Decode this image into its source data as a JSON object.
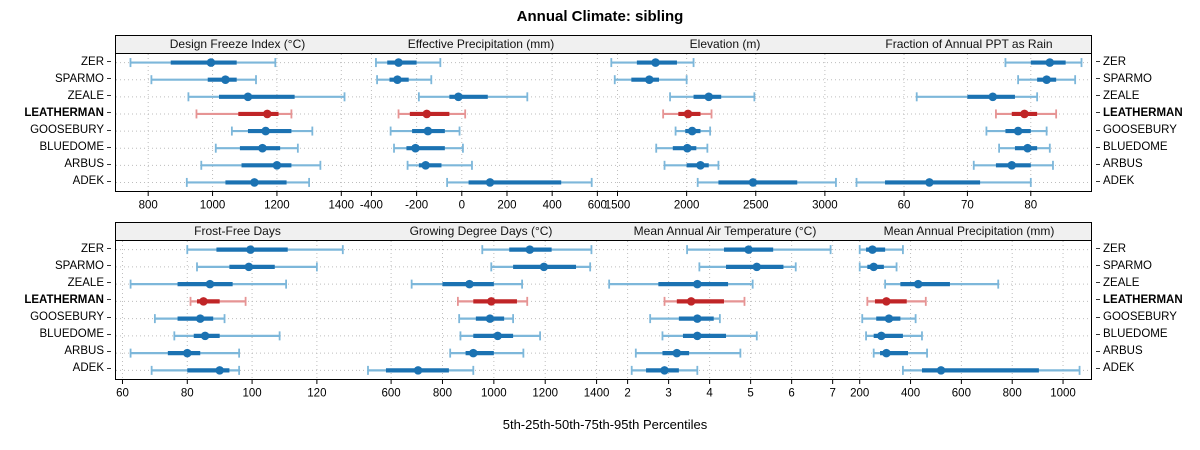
{
  "title": "Annual Climate: sibling",
  "caption": "5th-25th-50th-75th-95th Percentiles",
  "highlight_site": "LEATHERMAN",
  "colors": {
    "blue_dark": "#1b72b2",
    "blue_light": "#7db7da",
    "red_dark": "#c02527",
    "red_light": "#e69494",
    "strip_bg": "#f0f0f0",
    "grid": "#bdbdbd",
    "axis_text": "#000000"
  },
  "chart_data": {
    "type": "dotplot-percentile",
    "percentiles": [
      5,
      25,
      50,
      75,
      95
    ],
    "sites": [
      "ZER",
      "SPARMO",
      "ZEALE",
      "LEATHERMAN",
      "GOOSEBURY",
      "BLUEDOME",
      "ARBUS",
      "ADEK"
    ],
    "legend_position": "none",
    "grid": "dotted-at-ticks",
    "panels": [
      {
        "title": "Design Freeze Index (°C)",
        "xlim": [
          700,
          1455
        ],
        "ticks": [
          800,
          1000,
          1200,
          1400
        ],
        "values": {
          "ZER": [
            745,
            870,
            995,
            1075,
            1195
          ],
          "SPARMO": [
            810,
            985,
            1040,
            1075,
            1135
          ],
          "ZEALE": [
            925,
            1020,
            1110,
            1255,
            1410
          ],
          "LEATHERMAN": [
            950,
            1080,
            1170,
            1205,
            1245
          ],
          "GOOSEBURY": [
            1060,
            1110,
            1165,
            1245,
            1310
          ],
          "BLUEDOME": [
            1010,
            1085,
            1155,
            1210,
            1265
          ],
          "ARBUS": [
            965,
            1090,
            1200,
            1245,
            1335
          ],
          "ADEK": [
            920,
            1040,
            1130,
            1230,
            1300
          ]
        }
      },
      {
        "title": "Effective Precipitation (mm)",
        "xlim": [
          -455,
          625
        ],
        "ticks": [
          -400,
          -200,
          0,
          200,
          400,
          600
        ],
        "values": {
          "ZER": [
            -380,
            -330,
            -280,
            -200,
            -95
          ],
          "SPARMO": [
            -375,
            -320,
            -285,
            -235,
            -135
          ],
          "ZEALE": [
            -190,
            -55,
            -15,
            115,
            290
          ],
          "LEATHERMAN": [
            -280,
            -230,
            -155,
            -55,
            15
          ],
          "GOOSEBURY": [
            -315,
            -220,
            -150,
            -75,
            -10
          ],
          "BLUEDOME": [
            -300,
            -245,
            -205,
            -75,
            5
          ],
          "ARBUS": [
            -240,
            -190,
            -160,
            -90,
            45
          ],
          "ADEK": [
            -65,
            30,
            125,
            440,
            575
          ]
        }
      },
      {
        "title": "Elevation (m)",
        "xlim": [
          1395,
          3160
        ],
        "ticks": [
          1500,
          2000,
          2500,
          3000
        ],
        "values": {
          "ZER": [
            1455,
            1640,
            1775,
            1930,
            2050
          ],
          "SPARMO": [
            1480,
            1600,
            1730,
            1800,
            2000
          ],
          "ZEALE": [
            1880,
            2050,
            2160,
            2250,
            2490
          ],
          "LEATHERMAN": [
            1830,
            1940,
            2010,
            2100,
            2180
          ],
          "GOOSEBURY": [
            1920,
            1990,
            2040,
            2100,
            2170
          ],
          "BLUEDOME": [
            1780,
            1900,
            2005,
            2070,
            2150
          ],
          "ARBUS": [
            1840,
            2000,
            2100,
            2160,
            2230
          ],
          "ADEK": [
            2080,
            2230,
            2480,
            2800,
            3080
          ]
        }
      },
      {
        "title": "Fraction of Annual PPT as Rain",
        "xlim": [
          51,
          89.5
        ],
        "ticks": [
          60,
          70,
          80
        ],
        "values": {
          "ZER": [
            76,
            80,
            83,
            85.5,
            88
          ],
          "SPARMO": [
            78,
            81,
            82.5,
            84,
            87
          ],
          "ZEALE": [
            62,
            70,
            74,
            77.5,
            81
          ],
          "LEATHERMAN": [
            74.5,
            77,
            79,
            81,
            84
          ],
          "GOOSEBURY": [
            73,
            76,
            78,
            80,
            82.5
          ],
          "BLUEDOME": [
            75,
            77.5,
            79.5,
            81,
            83
          ],
          "ARBUS": [
            71,
            74.5,
            77,
            80,
            83.5
          ],
          "ADEK": [
            52.5,
            57,
            64,
            72,
            80
          ]
        }
      },
      {
        "title": "Frost-Free Days",
        "xlim": [
          58,
          133
        ],
        "ticks": [
          60,
          80,
          100,
          120
        ],
        "values": {
          "ZER": [
            80,
            89,
            99.5,
            111,
            128
          ],
          "SPARMO": [
            83,
            93,
            99,
            107,
            120
          ],
          "ZEALE": [
            62.5,
            77,
            87,
            94,
            110.5
          ],
          "LEATHERMAN": [
            81,
            83,
            85,
            90,
            98
          ],
          "GOOSEBURY": [
            70,
            77,
            84,
            88,
            91.5
          ],
          "BLUEDOME": [
            76,
            82,
            85.5,
            90,
            108.5
          ],
          "ARBUS": [
            62.5,
            74,
            80,
            84,
            96
          ],
          "ADEK": [
            69,
            80,
            90,
            93,
            96
          ]
        }
      },
      {
        "title": "Growing Degree Days (°C)",
        "xlim": [
          475,
          1425
        ],
        "ticks": [
          600,
          800,
          1000,
          1200,
          1400
        ],
        "values": {
          "ZER": [
            955,
            1060,
            1140,
            1225,
            1380
          ],
          "SPARMO": [
            990,
            1075,
            1195,
            1320,
            1375
          ],
          "ZEALE": [
            680,
            800,
            905,
            1000,
            1110
          ],
          "LEATHERMAN": [
            860,
            920,
            990,
            1090,
            1130
          ],
          "GOOSEBURY": [
            865,
            930,
            985,
            1040,
            1075
          ],
          "BLUEDOME": [
            870,
            920,
            1015,
            1075,
            1180
          ],
          "ARBUS": [
            830,
            890,
            920,
            1000,
            1115
          ],
          "ADEK": [
            510,
            580,
            705,
            825,
            920
          ]
        }
      },
      {
        "title": "Mean Annual Air Temperature (°C)",
        "xlim": [
          1.4,
          7.35
        ],
        "ticks": [
          2,
          3,
          4,
          5,
          6,
          7
        ],
        "values": {
          "ZER": [
            3.45,
            4.35,
            4.95,
            5.55,
            6.95
          ],
          "SPARMO": [
            3.75,
            4.4,
            5.15,
            5.8,
            6.1
          ],
          "ZEALE": [
            1.55,
            2.75,
            3.7,
            4.45,
            5.05
          ],
          "LEATHERMAN": [
            2.9,
            3.2,
            3.55,
            4.35,
            4.85
          ],
          "GOOSEBURY": [
            2.55,
            3.25,
            3.7,
            4.1,
            4.25
          ],
          "BLUEDOME": [
            2.85,
            3.35,
            3.7,
            4.4,
            5.15
          ],
          "ARBUS": [
            2.2,
            2.85,
            3.2,
            3.5,
            4.75
          ],
          "ADEK": [
            2.1,
            2.45,
            2.9,
            3.25,
            3.7
          ]
        }
      },
      {
        "title": "Mean Annual Precipitation (mm)",
        "xlim": [
          150,
          1110
        ],
        "ticks": [
          200,
          400,
          600,
          800,
          1000
        ],
        "values": {
          "ZER": [
            200,
            225,
            250,
            300,
            370
          ],
          "SPARMO": [
            200,
            230,
            255,
            295,
            345
          ],
          "ZEALE": [
            300,
            360,
            430,
            555,
            745
          ],
          "LEATHERMAN": [
            230,
            260,
            305,
            385,
            460
          ],
          "GOOSEBURY": [
            210,
            265,
            315,
            360,
            420
          ],
          "BLUEDOME": [
            225,
            255,
            285,
            370,
            445
          ],
          "ARBUS": [
            255,
            280,
            305,
            390,
            465
          ],
          "ADEK": [
            370,
            445,
            520,
            905,
            1065
          ]
        }
      }
    ]
  }
}
